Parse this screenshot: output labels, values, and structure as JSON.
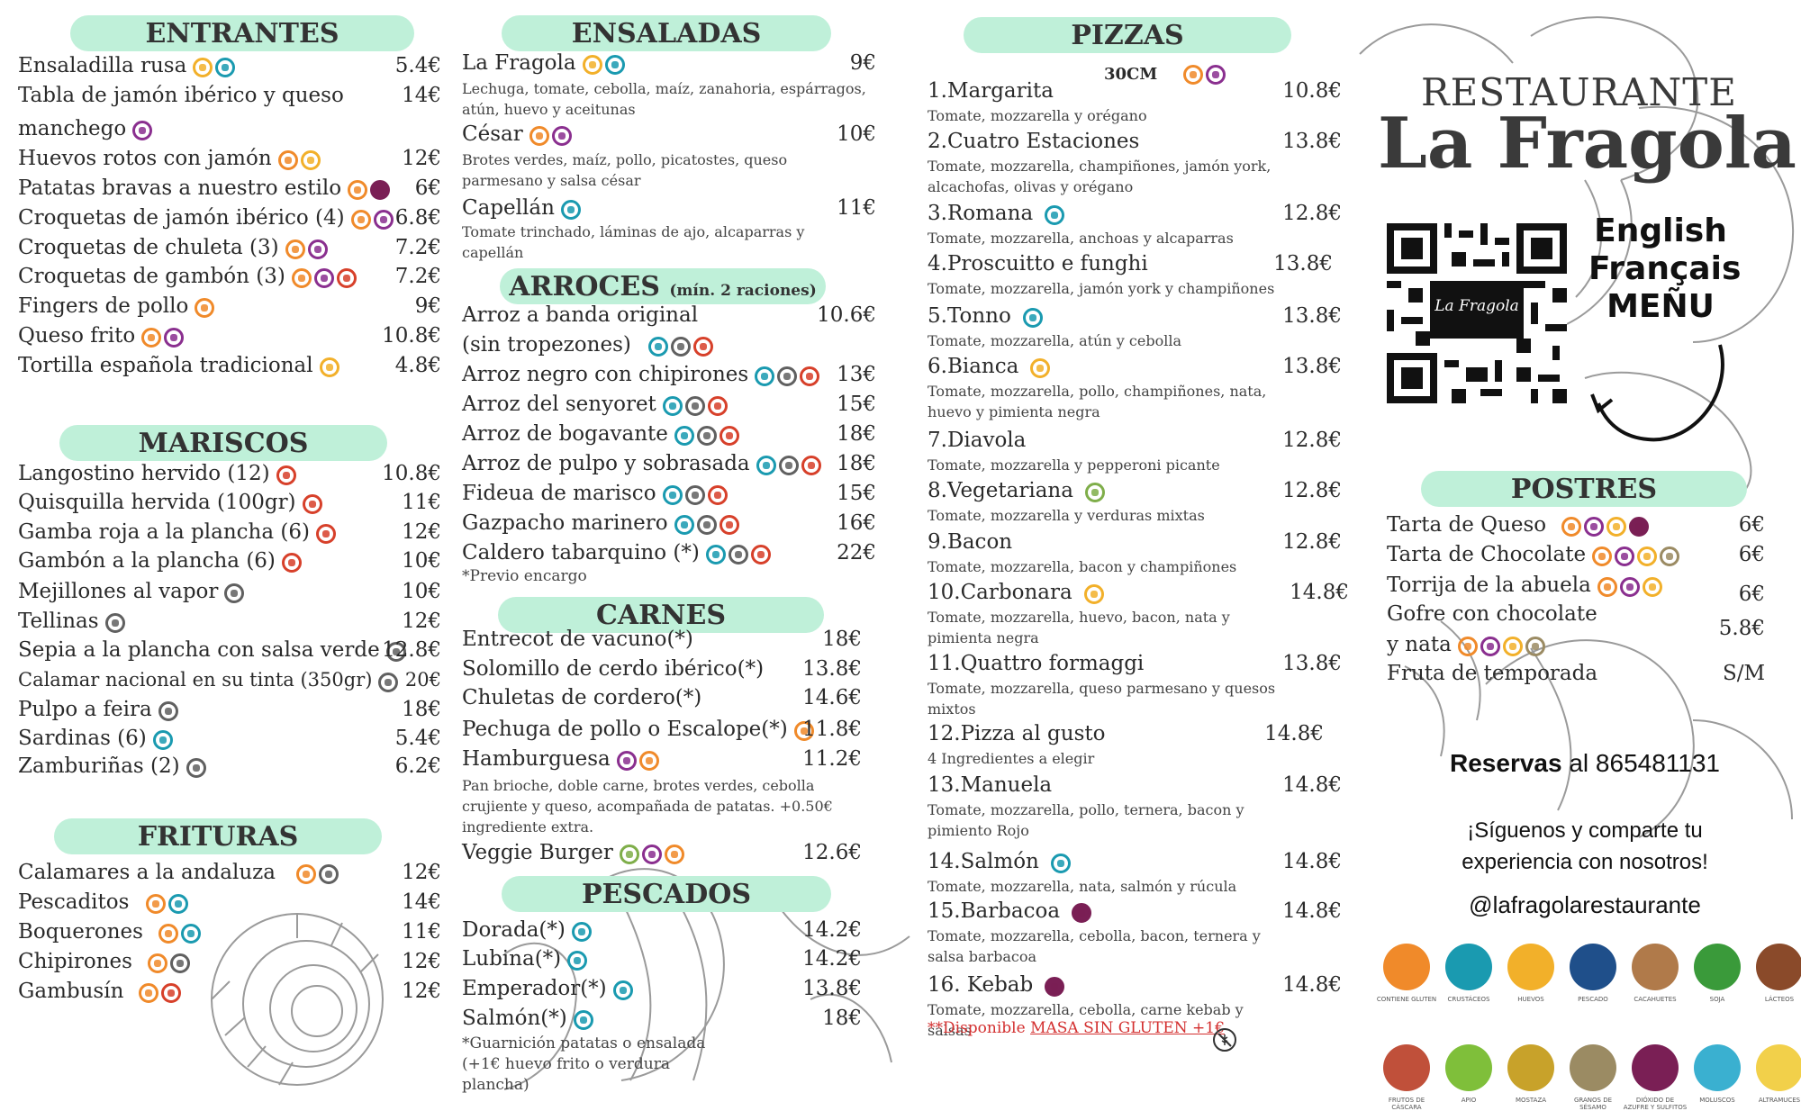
{
  "restaurant": {
    "label": "RESTAURANTE",
    "name": "La Fragola",
    "qr_caption": "La Fragola"
  },
  "languages": [
    "English",
    "Français",
    "MEÑU"
  ],
  "entrantes": {
    "title": "ENTRANTES",
    "items": [
      {
        "name": "Ensaladilla rusa",
        "price": "5.4€"
      },
      {
        "name": "Tabla de jamón ibérico y queso",
        "price": "14€"
      },
      {
        "name": "manchego",
        "price": ""
      },
      {
        "name": "Huevos rotos con jamón",
        "price": "12€"
      },
      {
        "name": "Patatas bravas a nuestro estilo",
        "price": "6€"
      },
      {
        "name": "Croquetas de jamón ibérico (4)",
        "price": "6.8€"
      },
      {
        "name": "Croquetas de chuleta (3)",
        "price": "7.2€"
      },
      {
        "name": "Croquetas de gambón (3)",
        "price": "7.2€"
      },
      {
        "name": "Fingers de pollo",
        "price": "9€"
      },
      {
        "name": "Queso frito",
        "price": "10.8€"
      },
      {
        "name": "Tortilla española tradicional",
        "price": "4.8€"
      }
    ]
  },
  "mariscos": {
    "title": "MARISCOS",
    "items": [
      {
        "name": "Langostino hervido (12)",
        "price": "10.8€"
      },
      {
        "name": "Quisquilla hervida (100gr)",
        "price": "11€"
      },
      {
        "name": "Gamba roja a la plancha (6)",
        "price": "12€"
      },
      {
        "name": "Gambón a la plancha (6)",
        "price": "10€"
      },
      {
        "name": "Mejillones al vapor",
        "price": "10€"
      },
      {
        "name": "Tellinas",
        "price": "12€"
      },
      {
        "name": "Sepia a la plancha con salsa verde",
        "price": "12.8€"
      },
      {
        "name": "Calamar nacional en su tinta (350gr)",
        "price": "20€"
      },
      {
        "name": "Pulpo a feira",
        "price": "18€"
      },
      {
        "name": "Sardinas (6)",
        "price": "5.4€"
      },
      {
        "name": "Zamburiñas (2)",
        "price": "6.2€"
      }
    ]
  },
  "frituras": {
    "title": "FRITURAS",
    "items": [
      {
        "name": "Calamares a la andaluza",
        "price": "12€"
      },
      {
        "name": "Pescaditos",
        "price": "14€"
      },
      {
        "name": "Boquerones",
        "price": "11€"
      },
      {
        "name": "Chipirones",
        "price": "12€"
      },
      {
        "name": "Gambusín",
        "price": "12€"
      }
    ]
  },
  "ensaladas": {
    "title": "ENSALADAS",
    "items": [
      {
        "name": "La Fragola",
        "price": "9€",
        "desc": "Lechuga, tomate, cebolla, maíz, zanahoria, espárragos, atún, huevo y aceitunas"
      },
      {
        "name": "César",
        "price": "10€",
        "desc": "Brotes verdes, maíz, pollo, picatostes, queso parmesano y salsa césar"
      },
      {
        "name": "Capellán",
        "price": "11€",
        "desc": "Tomate trinchado, láminas de ajo, alcaparras y capellán"
      }
    ]
  },
  "arroces": {
    "title": "ARROCES",
    "subtitle": "(mín. 2 raciones)",
    "items": [
      {
        "name": "Arroz a banda original",
        "price": "10.6€"
      },
      {
        "name": "(sin tropezones)",
        "price": ""
      },
      {
        "name": "Arroz negro con chipirones",
        "price": "13€"
      },
      {
        "name": "Arroz del senyoret",
        "price": "15€"
      },
      {
        "name": "Arroz de bogavante",
        "price": "18€"
      },
      {
        "name": "Arroz de pulpo y sobrasada",
        "price": "18€"
      },
      {
        "name": "Fideua de marisco",
        "price": "15€"
      },
      {
        "name": "Gazpacho marinero",
        "price": "16€"
      },
      {
        "name": "Caldero tabarquino (*)",
        "price": "22€"
      }
    ],
    "note": "*Previo encargo"
  },
  "carnes": {
    "title": "CARNES",
    "items": [
      {
        "name": "Entrecot de vacuno(*)",
        "price": "18€"
      },
      {
        "name": "Solomillo de cerdo ibérico(*)",
        "price": "13.8€"
      },
      {
        "name": "Chuletas de cordero(*)",
        "price": "14.6€"
      },
      {
        "name": "Pechuga de pollo o Escalope(*)",
        "price": "11.8€"
      },
      {
        "name": "Hamburguesa",
        "price": "11.2€",
        "desc": "Pan brioche, doble carne, brotes verdes, cebolla crujiente y queso, acompañada de patatas. +0.50€ ingrediente extra."
      },
      {
        "name": "Veggie Burger",
        "price": "12.6€"
      }
    ]
  },
  "pescados": {
    "title": "PESCADOS",
    "items": [
      {
        "name": "Dorada(*)",
        "price": "14.2€"
      },
      {
        "name": "Lubina(*)",
        "price": "14.2€"
      },
      {
        "name": "Emperador(*)",
        "price": "13.8€"
      },
      {
        "name": "Salmón(*)",
        "price": "18€"
      }
    ],
    "note": "*Guarnición patatas o ensalada (+1€ huevo frito o verdura plancha)"
  },
  "pizzas": {
    "title": "PIZZAS",
    "size": "30CM",
    "items": [
      {
        "name": "1.Margarita",
        "price": "10.8€",
        "desc": "Tomate, mozzarella y orégano"
      },
      {
        "name": "2.Cuatro Estaciones",
        "price": "13.8€",
        "desc": "Tomate, mozzarella, champiñones, jamón york, alcachofas, olivas y orégano"
      },
      {
        "name": "3.Romana",
        "price": "12.8€",
        "desc": "Tomate, mozzarella, anchoas y alcaparras"
      },
      {
        "name": "4.Proscuitto e funghi",
        "price": "13.8€",
        "desc": "Tomate, mozzarella, jamón york y champiñones"
      },
      {
        "name": "5.Tonno",
        "price": "13.8€",
        "desc": "Tomate, mozzarella, atún y cebolla"
      },
      {
        "name": "6.Bianca",
        "price": "13.8€",
        "desc": "Tomate, mozzarella, pollo, champiñones, nata, huevo y pimienta negra"
      },
      {
        "name": "7.Diavola",
        "price": "12.8€",
        "desc": "Tomate, mozzarella y pepperoni picante"
      },
      {
        "name": "8.Vegetariana",
        "price": "12.8€",
        "desc": "Tomate, mozzarella y verduras mixtas"
      },
      {
        "name": "9.Bacon",
        "price": "12.8€",
        "desc": "Tomate, mozzarella, bacon y champiñones"
      },
      {
        "name": "10.Carbonara",
        "price": "14.8€",
        "desc": "Tomate, mozzarella, huevo, bacon, nata y pimienta negra"
      },
      {
        "name": "11.Quattro formaggi",
        "price": "13.8€",
        "desc": "Tomate, mozzarella, queso parmesano y quesos mixtos"
      },
      {
        "name": "12.Pizza al gusto",
        "price": "14.8€",
        "desc": "4 Ingredientes a elegir"
      },
      {
        "name": "13.Manuela",
        "price": "14.8€",
        "desc": "Tomate, mozzarella, pollo, ternera, bacon y pimiento Rojo"
      },
      {
        "name": "14.Salmón",
        "price": "14.8€",
        "desc": "Tomate, mozzarella, nata, salmón y rúcula"
      },
      {
        "name": "15.Barbacoa",
        "price": "14.8€",
        "desc": "Tomate, mozzarella, cebolla, bacon, ternera y salsa barbacoa"
      },
      {
        "name": "16. Kebab",
        "price": "14.8€",
        "desc": "Tomate, mozzarella, cebolla, carne kebab y salsas"
      }
    ],
    "gluten_note_prefix": "**Disponible ",
    "gluten_note_link": "MASA SIN GLUTEN +1€"
  },
  "postres": {
    "title": "POSTRES",
    "items": [
      {
        "name": "Tarta de Queso",
        "price": "6€"
      },
      {
        "name": "Tarta de Chocolate",
        "price": "6€"
      },
      {
        "name": "Torrija de la abuela",
        "price": "6€"
      },
      {
        "name": "Gofre con chocolate",
        "price": "5.8€"
      },
      {
        "name": "y nata",
        "price": ""
      },
      {
        "name": "Fruta de temporada",
        "price": "S/M"
      }
    ]
  },
  "reservas": {
    "label": "Reservas",
    "connector": " al ",
    "phone": "865481131"
  },
  "social": {
    "line1": "¡Síguenos y comparte tu",
    "line2": "experiencia con nosotros!",
    "handle": "@lafragolarestaurante"
  },
  "allergens": [
    {
      "label": "CONTIENE GLUTEN",
      "color": "#f08a2a",
      "icon": "wheat-icon"
    },
    {
      "label": "CRUSTÁCEOS",
      "color": "#1a9ab0",
      "icon": "crab-icon"
    },
    {
      "label": "HUEVOS",
      "color": "#f2b02a",
      "icon": "egg-icon"
    },
    {
      "label": "PESCADO",
      "color": "#1f4f8a",
      "icon": "fish-icon"
    },
    {
      "label": "CACAHUETES",
      "color": "#b07a4a",
      "icon": "peanut-icon"
    },
    {
      "label": "SOJA",
      "color": "#3a9a3a",
      "icon": "soy-icon"
    },
    {
      "label": "LÁCTEOS",
      "color": "#8a4a2a",
      "icon": "milk-icon"
    },
    {
      "label": "FRUTOS DE CÁSCARA",
      "color": "#c0503a",
      "icon": "nut-icon"
    },
    {
      "label": "APIO",
      "color": "#7fbf3a",
      "icon": "celery-icon"
    },
    {
      "label": "MOSTAZA",
      "color": "#c8a22a",
      "icon": "mustard-icon"
    },
    {
      "label": "GRANOS DE SÉSAMO",
      "color": "#9b8b63",
      "icon": "sesame-icon"
    },
    {
      "label": "DIÓXIDO DE AZUFRE Y SULFITOS",
      "color": "#7a1f55",
      "icon": "sulphite-icon"
    },
    {
      "label": "MOLUSCOS",
      "color": "#3ab0d0",
      "icon": "shell-icon"
    },
    {
      "label": "ALTRAMUCES",
      "color": "#f2d04a",
      "icon": "lupin-icon"
    }
  ]
}
